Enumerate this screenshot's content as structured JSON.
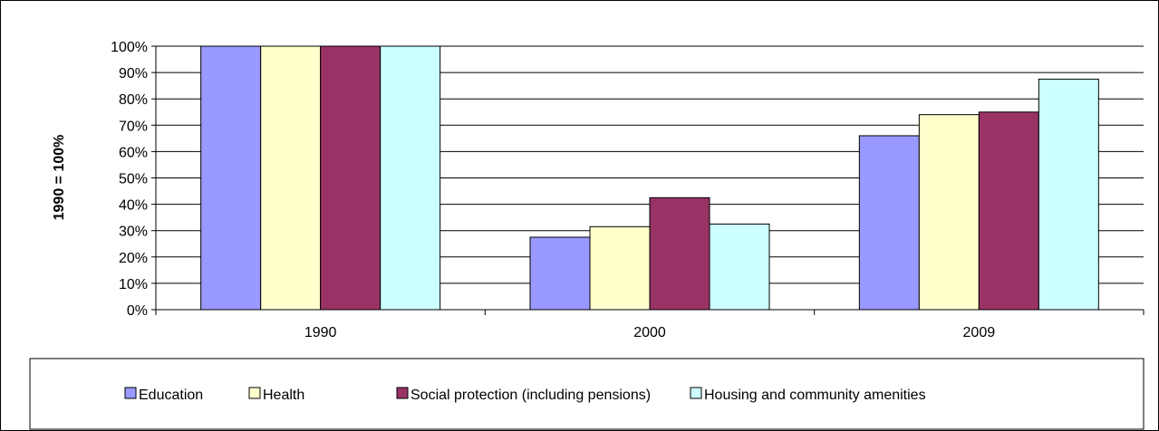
{
  "chart_data": {
    "type": "bar",
    "categories": [
      "1990",
      "2000",
      "2009"
    ],
    "series": [
      {
        "name": "Education",
        "values": [
          100,
          27.5,
          66
        ],
        "color": "#9999ff"
      },
      {
        "name": "Health",
        "values": [
          100,
          31.5,
          74
        ],
        "color": "#ffffcc"
      },
      {
        "name": "Social protection (including pensions)",
        "values": [
          100,
          42.5,
          75
        ],
        "color": "#993366"
      },
      {
        "name": "Housing and community amenities",
        "values": [
          100,
          32.5,
          87.5
        ],
        "color": "#ccffff"
      }
    ],
    "title": "",
    "xlabel": "",
    "ylabel": "1990 = 100%",
    "ylim": [
      0,
      100
    ],
    "yticks": [
      "0%",
      "10%",
      "20%",
      "30%",
      "40%",
      "50%",
      "60%",
      "70%",
      "80%",
      "90%",
      "100%"
    ],
    "grid": true,
    "legend_position": "bottom"
  }
}
